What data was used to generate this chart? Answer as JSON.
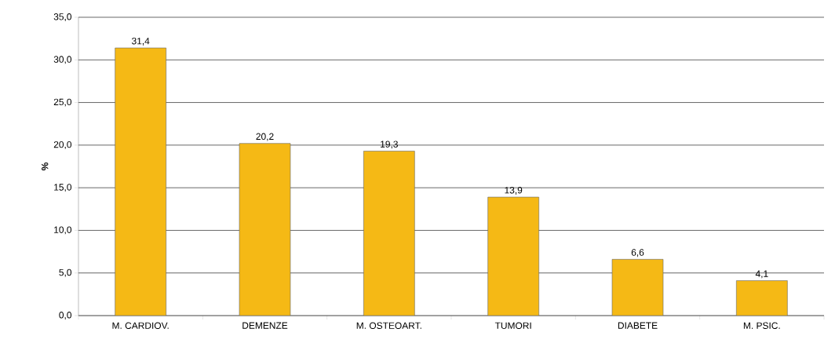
{
  "chart_data": {
    "type": "bar",
    "ylabel": "%",
    "categories": [
      "M. CARDIOV.",
      "DEMENZE",
      "M. OSTEOART.",
      "TUMORI",
      "DIABETE",
      "M. PSIC."
    ],
    "values": [
      31.4,
      20.2,
      19.3,
      13.9,
      6.6,
      4.1
    ],
    "value_labels": [
      "31,4",
      "20,2",
      "19,3",
      "13,9",
      "6,6",
      "4,1"
    ],
    "color": "#f5b915",
    "ylim": [
      0,
      35
    ],
    "yticks": [
      {
        "value": 0,
        "label": "0,0"
      },
      {
        "value": 5,
        "label": "5,0"
      },
      {
        "value": 10,
        "label": "10,0"
      },
      {
        "value": 15,
        "label": "15,0"
      },
      {
        "value": 20,
        "label": "20,0"
      },
      {
        "value": 25,
        "label": "25,0"
      },
      {
        "value": 30,
        "label": "30,0"
      },
      {
        "value": 35,
        "label": "35,0"
      }
    ],
    "grid": "y"
  }
}
